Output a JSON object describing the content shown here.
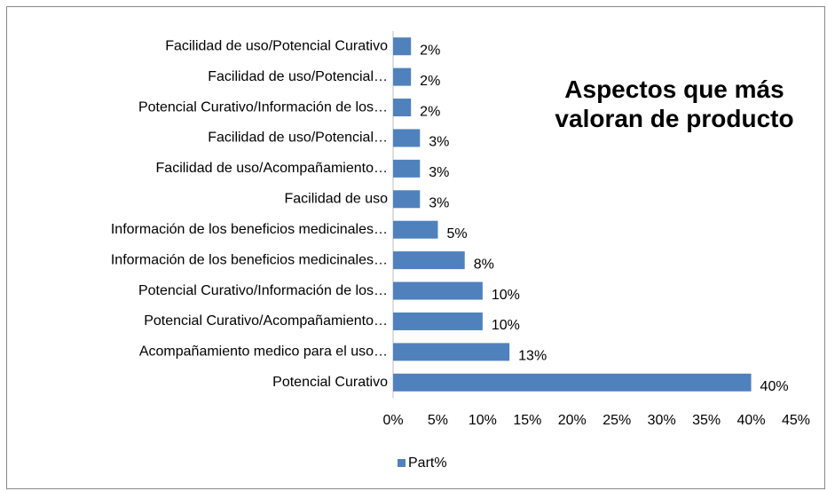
{
  "chart_data": {
    "type": "bar",
    "orientation": "horizontal",
    "title": "Aspectos que más valoran de producto",
    "categories": [
      "Facilidad de uso/Potencial Curativo",
      "Facilidad de uso/Potencial…",
      "Potencial Curativo/Información de los…",
      "Facilidad de uso/Potencial…",
      "Facilidad de uso/Acompañamiento…",
      "Facilidad de uso",
      "Información de los beneficios medicinales…",
      "Información de los beneficios medicinales…",
      "Potencial Curativo/Información de los…",
      "Potencial Curativo/Acompañamiento…",
      "Acompañamiento medico para el uso…",
      "Potencial Curativo"
    ],
    "series": [
      {
        "name": "Part%",
        "color": "#4f81bd",
        "values": [
          2,
          2,
          2,
          3,
          3,
          3,
          5,
          8,
          10,
          10,
          13,
          40
        ],
        "value_labels": [
          "2%",
          "2%",
          "2%",
          "3%",
          "3%",
          "3%",
          "5%",
          "8%",
          "10%",
          "10%",
          "13%",
          "40%"
        ]
      }
    ],
    "xlim": [
      0,
      45
    ],
    "xticks": [
      {
        "value": 0,
        "label": "0%"
      },
      {
        "value": 5,
        "label": "5%"
      },
      {
        "value": 10,
        "label": "10%"
      },
      {
        "value": 15,
        "label": "15%"
      },
      {
        "value": 20,
        "label": "20%"
      },
      {
        "value": 25,
        "label": "25%"
      },
      {
        "value": 30,
        "label": "30%"
      },
      {
        "value": 35,
        "label": "35%"
      },
      {
        "value": 40,
        "label": "40%"
      },
      {
        "value": 45,
        "label": "45%"
      }
    ],
    "grid": false,
    "legend": "bottom"
  }
}
